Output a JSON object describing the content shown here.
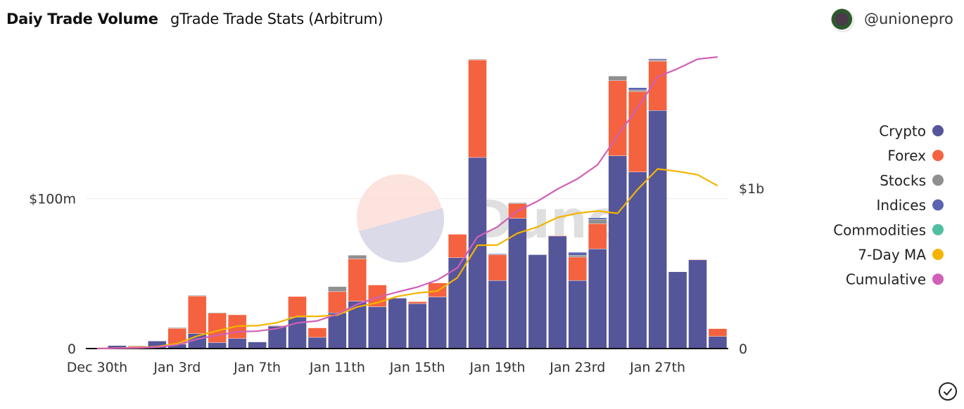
{
  "header": {
    "title": "Daiy Trade Volume",
    "subtitle": "gTrade Trade Stats (Arbitrum)",
    "handle": "@unionepro",
    "avatar_icon": "user-avatar"
  },
  "watermark": "Dune",
  "footer": {
    "check_icon": "check-circle-icon"
  },
  "chart_data": {
    "type": "bar",
    "stacked": true,
    "title": "Daiy Trade Volume",
    "xlabel": "",
    "ylabel": "",
    "ylim": [
      0,
      195
    ],
    "y2lim": [
      0,
      1.825
    ],
    "grid": true,
    "legend_position": "right",
    "y_ticks": [
      {
        "value": 0,
        "label": "0"
      },
      {
        "value": 100,
        "label": "$100m"
      }
    ],
    "y2_ticks": [
      {
        "value": 0,
        "label": "0"
      },
      {
        "value": 1,
        "label": "$1b"
      }
    ],
    "x_ticks": [
      {
        "index": 0,
        "label": "Dec 30th"
      },
      {
        "index": 4,
        "label": "Jan 3rd"
      },
      {
        "index": 8,
        "label": "Jan 7th"
      },
      {
        "index": 12,
        "label": "Jan 11th"
      },
      {
        "index": 16,
        "label": "Jan 15th"
      },
      {
        "index": 20,
        "label": "Jan 19th"
      },
      {
        "index": 24,
        "label": "Jan 23rd"
      },
      {
        "index": 28,
        "label": "Jan 27th"
      }
    ],
    "categories": [
      "Dec 30",
      "Dec 31",
      "Jan 1",
      "Jan 2",
      "Jan 3",
      "Jan 4",
      "Jan 5",
      "Jan 6",
      "Jan 7",
      "Jan 8",
      "Jan 9",
      "Jan 10",
      "Jan 11",
      "Jan 12",
      "Jan 13",
      "Jan 14",
      "Jan 15",
      "Jan 16",
      "Jan 17",
      "Jan 18",
      "Jan 19",
      "Jan 20",
      "Jan 21",
      "Jan 22",
      "Jan 23",
      "Jan 24",
      "Jan 25",
      "Jan 26",
      "Jan 27",
      "Jan 28",
      "Jan 29",
      "Jan 30"
    ],
    "units": "$m (bars, 7-Day MA), $b (Cumulative)",
    "series": [
      {
        "name": "Crypto",
        "kind": "bar",
        "axis": "left",
        "color": "#55559a",
        "values": [
          0,
          2,
          1,
          5,
          3,
          10,
          4,
          6.7,
          4.4,
          15,
          21,
          7.5,
          23.8,
          31.6,
          27.9,
          33.6,
          30,
          34.4,
          60.6,
          127.5,
          45.4,
          86.9,
          62.6,
          75.1,
          45.4,
          66.5,
          128.6,
          117.8,
          158.8,
          51.2,
          59.2,
          8.1
        ]
      },
      {
        "name": "Forex",
        "kind": "bar",
        "axis": "left",
        "color": "#f4623f",
        "values": [
          0,
          0,
          0.7,
          0,
          10.5,
          25,
          19.8,
          15.8,
          0,
          0.4,
          13.7,
          6.3,
          14.2,
          28.2,
          14.5,
          0,
          1.3,
          9.4,
          15.6,
          65,
          17.2,
          9.8,
          0,
          0.3,
          15.6,
          16.8,
          50.1,
          53.6,
          32.9,
          0,
          0.3,
          5.2
        ]
      },
      {
        "name": "Stocks",
        "kind": "bar",
        "axis": "left",
        "color": "#8f8f8f",
        "values": [
          0,
          0,
          0.3,
          0,
          0.5,
          0.5,
          0.2,
          0,
          0,
          0,
          0,
          0,
          3.3,
          2.5,
          0,
          0,
          0,
          0,
          0,
          0.5,
          0,
          0.6,
          0,
          0,
          1.2,
          2.8,
          3.1,
          1.1,
          0.8,
          0,
          0,
          0
        ]
      },
      {
        "name": "Indices",
        "kind": "bar",
        "axis": "left",
        "color": "#5b64b0",
        "values": [
          0,
          0,
          0,
          0,
          0,
          0,
          0,
          0,
          0,
          0,
          0,
          0,
          0,
          0,
          0,
          0,
          0,
          0,
          0,
          0,
          0.6,
          0,
          0,
          0,
          2,
          1.1,
          0,
          1.5,
          0.8,
          0,
          0,
          0
        ]
      },
      {
        "name": "Commodities",
        "kind": "bar",
        "axis": "left",
        "color": "#4fbfa0",
        "values": [
          0,
          0,
          0,
          0,
          0,
          0,
          0,
          0,
          0,
          0,
          0,
          0,
          0,
          0,
          0,
          0,
          0,
          0,
          0,
          0,
          0,
          0,
          0,
          0,
          0,
          0,
          0,
          0,
          0,
          0,
          0,
          0
        ]
      },
      {
        "name": "7-Day MA",
        "kind": "line",
        "axis": "left",
        "color": "#f4b400",
        "values": [
          0,
          0.3,
          0.6,
          1.3,
          3.3,
          8.4,
          11.8,
          15,
          15.3,
          17.3,
          21.5,
          21.5,
          22.3,
          27.8,
          30.6,
          34.8,
          37.1,
          38.4,
          47.3,
          68.9,
          69.1,
          76.9,
          81.1,
          87.4,
          90.3,
          91.8,
          90.2,
          106.1,
          119.8,
          118.2,
          115.9,
          108.6
        ]
      },
      {
        "name": "Cumulative",
        "kind": "line",
        "axis": "right",
        "color": "#d060b8",
        "values": [
          0,
          0.002,
          0.004,
          0.009,
          0.023,
          0.059,
          0.083,
          0.105,
          0.109,
          0.125,
          0.16,
          0.173,
          0.215,
          0.277,
          0.319,
          0.353,
          0.384,
          0.428,
          0.504,
          0.697,
          0.76,
          0.858,
          0.92,
          0.996,
          1.06,
          1.147,
          1.329,
          1.503,
          1.696,
          1.747,
          1.807,
          1.82
        ]
      }
    ]
  }
}
